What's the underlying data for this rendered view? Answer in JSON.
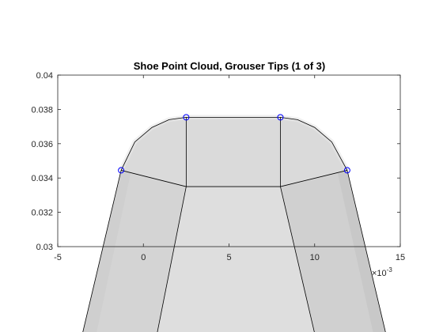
{
  "chart_data": {
    "type": "scatter",
    "title": "Shoe Point Cloud, Grouser Tips (1 of 3)",
    "xlabel": "",
    "ylabel": "",
    "x_exponent_label": "×10",
    "x_exponent_power": "-3",
    "xlim": [
      -5,
      15
    ],
    "ylim": [
      0.03,
      0.04
    ],
    "x_ticks": [
      -5,
      0,
      5,
      10,
      15
    ],
    "x_tick_labels": [
      "-5",
      "0",
      "5",
      "10",
      "15"
    ],
    "y_ticks": [
      0.03,
      0.032,
      0.034,
      0.036,
      0.038,
      0.04
    ],
    "y_tick_labels": [
      "0.03",
      "0.032",
      "0.034",
      "0.036",
      "0.038",
      "0.04"
    ],
    "grid": false,
    "series": [
      {
        "marker": "circle",
        "color": "#0000ff",
        "x": [
          -1.3,
          2.5,
          8.0,
          11.9
        ],
        "y": [
          0.03445,
          0.03754,
          0.03754,
          0.03445
        ]
      }
    ],
    "surface": {
      "color": "#d9d9d9",
      "edge_color": "#000000",
      "top_polygon_x": [
        -1.3,
        -0.5,
        0.5,
        1.5,
        2.5,
        8.0,
        9.0,
        10.0,
        11.0,
        11.9
      ],
      "top_polygon_y": [
        0.03445,
        0.0361,
        0.03695,
        0.0374,
        0.03754,
        0.03754,
        0.0374,
        0.03695,
        0.0361,
        0.03445
      ],
      "inner_x": [
        2.5,
        8.0
      ],
      "inner_y": 0.0335
    }
  }
}
